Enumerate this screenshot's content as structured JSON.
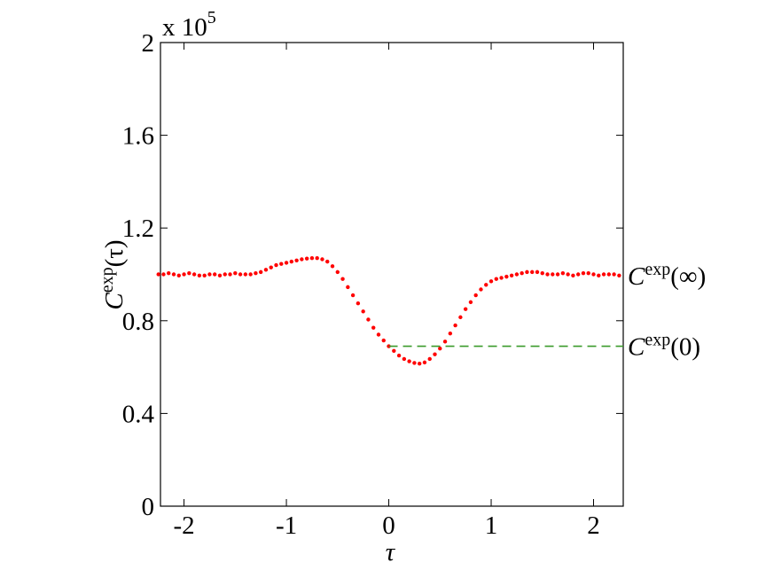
{
  "chart_data": {
    "type": "scatter",
    "xlabel": "τ",
    "ylabel": {
      "base": "C",
      "sup": "exp",
      "arg": "(τ)"
    },
    "y_multiplier": {
      "base": "x 10",
      "exp": "5"
    },
    "xlim": [
      -2.23,
      2.29
    ],
    "ylim": [
      0,
      2
    ],
    "xticks": [
      -2,
      -1,
      0,
      1,
      2
    ],
    "yticks": [
      0,
      0.4,
      0.8,
      1.2,
      1.6,
      2
    ],
    "series": [
      {
        "style": "dots",
        "color": "#ff0000",
        "x": [
          -2.25,
          -2.2,
          -2.15,
          -2.1,
          -2.05,
          -2.0,
          -1.95,
          -1.9,
          -1.85,
          -1.8,
          -1.75,
          -1.7,
          -1.65,
          -1.6,
          -1.55,
          -1.5,
          -1.45,
          -1.4,
          -1.35,
          -1.3,
          -1.25,
          -1.2,
          -1.15,
          -1.1,
          -1.05,
          -1.0,
          -0.95,
          -0.9,
          -0.85,
          -0.8,
          -0.75,
          -0.7,
          -0.65,
          -0.6,
          -0.55,
          -0.5,
          -0.45,
          -0.4,
          -0.35,
          -0.3,
          -0.25,
          -0.2,
          -0.15,
          -0.1,
          -0.05,
          0,
          0.05,
          0.1,
          0.15,
          0.2,
          0.25,
          0.3,
          0.35,
          0.4,
          0.45,
          0.5,
          0.55,
          0.6,
          0.65,
          0.7,
          0.75,
          0.8,
          0.85,
          0.9,
          0.95,
          1.0,
          1.05,
          1.1,
          1.15,
          1.2,
          1.25,
          1.3,
          1.35,
          1.4,
          1.45,
          1.5,
          1.55,
          1.6,
          1.65,
          1.7,
          1.75,
          1.8,
          1.85,
          1.9,
          1.95,
          2.0,
          2.05,
          2.1,
          2.15,
          2.2,
          2.25
        ],
        "values": [
          1.0,
          1.0,
          1.005,
          1.0,
          0.995,
          1.0,
          1.005,
          1.0,
          0.995,
          0.995,
          1.0,
          1.0,
          0.995,
          1.0,
          1.0,
          1.005,
          1.0,
          1.0,
          1.0,
          1.005,
          1.01,
          1.02,
          1.03,
          1.04,
          1.045,
          1.05,
          1.055,
          1.06,
          1.065,
          1.068,
          1.07,
          1.07,
          1.065,
          1.055,
          1.035,
          1.01,
          0.98,
          0.945,
          0.91,
          0.875,
          0.84,
          0.805,
          0.77,
          0.74,
          0.715,
          0.69,
          0.67,
          0.65,
          0.635,
          0.625,
          0.618,
          0.615,
          0.62,
          0.635,
          0.655,
          0.68,
          0.71,
          0.745,
          0.78,
          0.815,
          0.85,
          0.88,
          0.91,
          0.935,
          0.955,
          0.97,
          0.98,
          0.985,
          0.99,
          0.995,
          1.0,
          1.005,
          1.01,
          1.01,
          1.01,
          1.005,
          1.0,
          1.0,
          1.0,
          1.005,
          1.0,
          0.995,
          1.0,
          1.005,
          1.005,
          1.0,
          0.995,
          1.0,
          1.0,
          1.0,
          0.995
        ]
      },
      {
        "style": "dashed",
        "color": "#3a9a2a",
        "x": [
          0,
          2.29
        ],
        "values": [
          0.69,
          0.69
        ]
      }
    ],
    "annotations": [
      {
        "base": "C",
        "sup": "exp",
        "arg": "(∞)"
      },
      {
        "base": "C",
        "sup": "exp",
        "arg": "(0)"
      }
    ]
  }
}
